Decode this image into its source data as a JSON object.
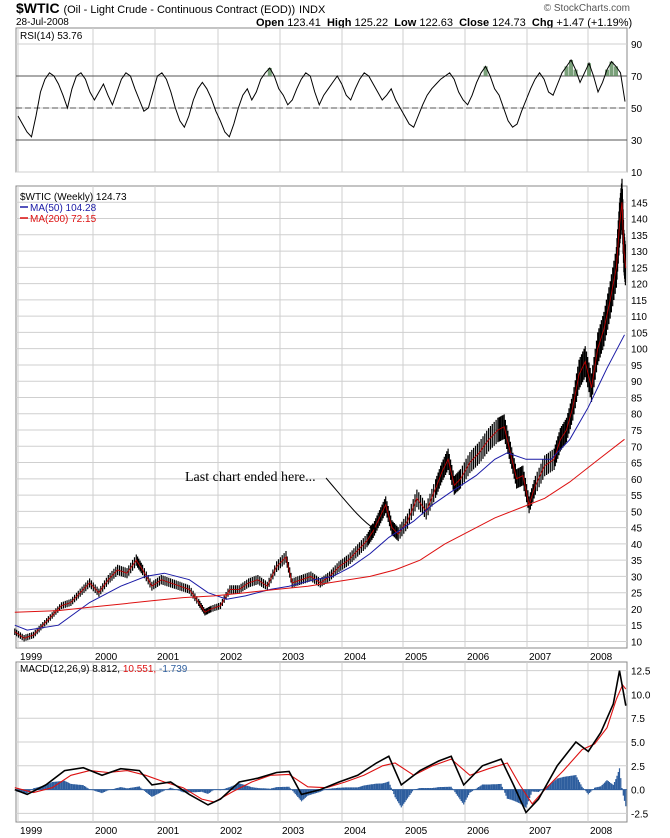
{
  "header": {
    "symbol": "$WTIC",
    "name": "(Oil - Light Crude - Continuous Contract (EOD))",
    "exchange": "INDX",
    "date": "28-Jul-2008",
    "open_label": "Open",
    "open": "123.41",
    "high_label": "High",
    "high": "125.22",
    "low_label": "Low",
    "low": "122.63",
    "close_label": "Close",
    "close": "124.73",
    "chg_label": "Chg",
    "chg": "+1.47 (+1.19%)",
    "credit": "© StockCharts.com"
  },
  "colors": {
    "ma50": "#1a1aa6",
    "ma200": "#dd1111",
    "rsi_fill": "#5a8a5a",
    "hist": "#2e5e9e",
    "grid": "#cfcfcf"
  },
  "chart_data": [
    {
      "type": "line",
      "panel": "RSI",
      "title": "RSI(14) 53.76",
      "ylim": [
        20,
        100
      ],
      "yticks": [
        10,
        30,
        50,
        70,
        90
      ],
      "reference_lines": [
        30,
        50,
        70
      ],
      "series": [
        {
          "values": [
            45,
            40,
            35,
            32,
            45,
            60,
            68,
            72,
            70,
            65,
            58,
            50,
            62,
            70,
            72,
            68,
            60,
            55,
            60,
            65,
            58,
            52,
            60,
            68,
            72,
            70,
            62,
            55,
            48,
            50,
            60,
            70,
            72,
            68,
            60,
            50,
            42,
            38,
            45,
            55,
            62,
            66,
            62,
            56,
            48,
            42,
            35,
            32,
            40,
            50,
            58,
            62,
            55,
            60,
            68,
            72,
            75,
            70,
            62,
            58,
            52,
            55,
            62,
            68,
            72,
            70,
            60,
            52,
            58,
            62,
            66,
            70,
            65,
            58,
            55,
            62,
            68,
            72,
            70,
            65,
            60,
            55,
            58,
            62,
            55,
            50,
            45,
            40,
            38,
            45,
            52,
            58,
            62,
            65,
            68,
            70,
            72,
            68,
            60,
            55,
            52,
            58,
            66,
            72,
            76,
            70,
            62,
            58,
            50,
            42,
            38,
            40,
            48,
            55,
            62,
            68,
            72,
            68,
            60,
            58,
            65,
            72,
            76,
            80,
            74,
            66,
            72,
            78,
            70,
            60,
            66,
            74,
            79,
            76,
            72,
            54
          ]
        }
      ]
    },
    {
      "type": "line",
      "panel": "Price",
      "title": "$WTIC (Weekly) 124.73",
      "x_ticks": [
        "1999",
        "2000",
        "2001",
        "2002",
        "2003",
        "2004",
        "2005",
        "2006",
        "2007",
        "2008"
      ],
      "ylim": [
        8,
        150
      ],
      "yticks": [
        10,
        15,
        20,
        25,
        30,
        35,
        40,
        45,
        50,
        55,
        60,
        65,
        70,
        75,
        80,
        85,
        90,
        95,
        100,
        105,
        110,
        115,
        120,
        125,
        130,
        135,
        140,
        145
      ],
      "annotation": "Last chart ended here...",
      "series": [
        {
          "name": "MA(50) 104.28",
          "color": "#1a1aa6",
          "values": [
            [
              1998.8,
              15
            ],
            [
              1999.0,
              13.5
            ],
            [
              1999.5,
              15
            ],
            [
              2000.0,
              22
            ],
            [
              2000.5,
              27
            ],
            [
              2000.9,
              30
            ],
            [
              2001.2,
              31
            ],
            [
              2001.6,
              29
            ],
            [
              2001.9,
              25
            ],
            [
              2002.2,
              23
            ],
            [
              2002.5,
              24
            ],
            [
              2002.9,
              26
            ],
            [
              2003.2,
              27
            ],
            [
              2003.6,
              29
            ],
            [
              2003.9,
              30
            ],
            [
              2004.2,
              33
            ],
            [
              2004.5,
              37
            ],
            [
              2004.8,
              42
            ],
            [
              2005.2,
              47
            ],
            [
              2005.5,
              52
            ],
            [
              2005.8,
              56
            ],
            [
              2006.2,
              61
            ],
            [
              2006.5,
              66
            ],
            [
              2006.7,
              68
            ],
            [
              2007.0,
              66
            ],
            [
              2007.4,
              66
            ],
            [
              2007.7,
              72
            ],
            [
              2008.0,
              82
            ],
            [
              2008.3,
              94
            ],
            [
              2008.58,
              104.28
            ]
          ]
        },
        {
          "name": "MA(200) 72.15",
          "color": "#dd1111",
          "values": [
            [
              1998.8,
              19
            ],
            [
              1999.5,
              19.5
            ],
            [
              2000.0,
              20.5
            ],
            [
              2000.5,
              21.5
            ],
            [
              2001.0,
              22.5
            ],
            [
              2001.5,
              23.5
            ],
            [
              2002.0,
              24
            ],
            [
              2002.5,
              25
            ],
            [
              2003.0,
              26
            ],
            [
              2003.5,
              27
            ],
            [
              2004.0,
              28.5
            ],
            [
              2004.5,
              30
            ],
            [
              2004.9,
              32
            ],
            [
              2005.3,
              35
            ],
            [
              2005.7,
              40
            ],
            [
              2006.1,
              44
            ],
            [
              2006.5,
              48
            ],
            [
              2006.9,
              51
            ],
            [
              2007.3,
              54
            ],
            [
              2007.7,
              59
            ],
            [
              2008.1,
              65
            ],
            [
              2008.58,
              72.15
            ]
          ]
        },
        {
          "name": "$WTIC",
          "color": "#000000",
          "values": [
            [
              1998.8,
              13
            ],
            [
              1998.95,
              11
            ],
            [
              1999.1,
              12
            ],
            [
              1999.25,
              15
            ],
            [
              1999.4,
              18
            ],
            [
              1999.55,
              21
            ],
            [
              1999.7,
              22
            ],
            [
              1999.85,
              25
            ],
            [
              2000.0,
              28
            ],
            [
              2000.15,
              25
            ],
            [
              2000.3,
              29
            ],
            [
              2000.45,
              32
            ],
            [
              2000.6,
              31
            ],
            [
              2000.75,
              35
            ],
            [
              2000.85,
              32
            ],
            [
              2001.0,
              27
            ],
            [
              2001.15,
              29
            ],
            [
              2001.3,
              28
            ],
            [
              2001.45,
              27
            ],
            [
              2001.6,
              26
            ],
            [
              2001.75,
              22
            ],
            [
              2001.85,
              19
            ],
            [
              2001.95,
              20
            ],
            [
              2002.1,
              21
            ],
            [
              2002.25,
              26
            ],
            [
              2002.4,
              26
            ],
            [
              2002.55,
              28
            ],
            [
              2002.7,
              29
            ],
            [
              2002.85,
              27
            ],
            [
              2003.0,
              33
            ],
            [
              2003.15,
              36
            ],
            [
              2003.25,
              28
            ],
            [
              2003.4,
              29
            ],
            [
              2003.55,
              30
            ],
            [
              2003.7,
              28
            ],
            [
              2003.85,
              30
            ],
            [
              2004.0,
              33
            ],
            [
              2004.15,
              35
            ],
            [
              2004.3,
              38
            ],
            [
              2004.45,
              41
            ],
            [
              2004.55,
              44
            ],
            [
              2004.65,
              48
            ],
            [
              2004.75,
              52
            ],
            [
              2004.85,
              45
            ],
            [
              2004.95,
              43
            ],
            [
              2005.1,
              47
            ],
            [
              2005.25,
              54
            ],
            [
              2005.4,
              50
            ],
            [
              2005.55,
              57
            ],
            [
              2005.65,
              62
            ],
            [
              2005.75,
              66
            ],
            [
              2005.85,
              58
            ],
            [
              2005.95,
              60
            ],
            [
              2006.1,
              65
            ],
            [
              2006.25,
              68
            ],
            [
              2006.4,
              72
            ],
            [
              2006.55,
              75
            ],
            [
              2006.65,
              76
            ],
            [
              2006.75,
              68
            ],
            [
              2006.85,
              60
            ],
            [
              2006.95,
              61
            ],
            [
              2007.05,
              52
            ],
            [
              2007.15,
              58
            ],
            [
              2007.3,
              64
            ],
            [
              2007.45,
              66
            ],
            [
              2007.55,
              72
            ],
            [
              2007.65,
              75
            ],
            [
              2007.75,
              82
            ],
            [
              2007.85,
              92
            ],
            [
              2007.95,
              96
            ],
            [
              2008.05,
              88
            ],
            [
              2008.15,
              100
            ],
            [
              2008.25,
              106
            ],
            [
              2008.35,
              115
            ],
            [
              2008.45,
              125
            ],
            [
              2008.5,
              138
            ],
            [
              2008.54,
              145
            ],
            [
              2008.57,
              130
            ],
            [
              2008.6,
              124.73
            ]
          ]
        }
      ]
    },
    {
      "type": "line",
      "panel": "MACD",
      "title": "MACD(12,26,9) 8.812, 10.551, -1.739",
      "x_ticks": [
        "1999",
        "2000",
        "2001",
        "2002",
        "2003",
        "2004",
        "2005",
        "2006",
        "2007",
        "2008"
      ],
      "ylim": [
        -3.4,
        13.4
      ],
      "yticks": [
        -2.5,
        0.0,
        2.5,
        5.0,
        7.5,
        10.0,
        12.5
      ],
      "series": [
        {
          "name": "MACD 8.812",
          "color": "#000000",
          "values": [
            [
              1998.8,
              0
            ],
            [
              1999.0,
              -0.5
            ],
            [
              1999.3,
              0.5
            ],
            [
              1999.6,
              2.0
            ],
            [
              1999.9,
              2.3
            ],
            [
              2000.2,
              1.5
            ],
            [
              2000.5,
              2.2
            ],
            [
              2000.8,
              2.0
            ],
            [
              2001.0,
              0.5
            ],
            [
              2001.3,
              0.8
            ],
            [
              2001.6,
              -0.5
            ],
            [
              2001.9,
              -1.6
            ],
            [
              2002.1,
              -1.0
            ],
            [
              2002.4,
              0.8
            ],
            [
              2002.7,
              1.2
            ],
            [
              2003.0,
              1.8
            ],
            [
              2003.2,
              1.9
            ],
            [
              2003.4,
              -0.5
            ],
            [
              2003.7,
              0
            ],
            [
              2004.0,
              0.8
            ],
            [
              2004.3,
              1.5
            ],
            [
              2004.6,
              2.8
            ],
            [
              2004.8,
              3.5
            ],
            [
              2005.0,
              0.5
            ],
            [
              2005.3,
              2.0
            ],
            [
              2005.6,
              3.0
            ],
            [
              2005.8,
              3.5
            ],
            [
              2006.0,
              0.5
            ],
            [
              2006.3,
              2.5
            ],
            [
              2006.6,
              3.2
            ],
            [
              2006.8,
              0.5
            ],
            [
              2007.0,
              -2.4
            ],
            [
              2007.2,
              -1.0
            ],
            [
              2007.5,
              2.5
            ],
            [
              2007.8,
              5.0
            ],
            [
              2008.0,
              4.0
            ],
            [
              2008.2,
              6.0
            ],
            [
              2008.4,
              9.0
            ],
            [
              2008.5,
              12.5
            ],
            [
              2008.6,
              8.812
            ]
          ]
        },
        {
          "name": "Signal 10.551",
          "color": "#dd1111",
          "values": [
            [
              1998.8,
              0.2
            ],
            [
              1999.1,
              -0.3
            ],
            [
              1999.4,
              0.2
            ],
            [
              1999.7,
              1.5
            ],
            [
              2000.0,
              2.0
            ],
            [
              2000.3,
              1.8
            ],
            [
              2000.6,
              2.0
            ],
            [
              2000.9,
              1.5
            ],
            [
              2001.2,
              0.8
            ],
            [
              2001.5,
              0.2
            ],
            [
              2001.8,
              -1.0
            ],
            [
              2002.0,
              -1.3
            ],
            [
              2002.3,
              -0.2
            ],
            [
              2002.6,
              0.8
            ],
            [
              2002.9,
              1.5
            ],
            [
              2003.2,
              1.6
            ],
            [
              2003.5,
              0.3
            ],
            [
              2003.8,
              0.2
            ],
            [
              2004.1,
              0.8
            ],
            [
              2004.4,
              1.5
            ],
            [
              2004.7,
              2.5
            ],
            [
              2004.9,
              2.8
            ],
            [
              2005.2,
              1.5
            ],
            [
              2005.5,
              2.5
            ],
            [
              2005.8,
              3.2
            ],
            [
              2006.1,
              1.5
            ],
            [
              2006.4,
              2.2
            ],
            [
              2006.7,
              2.8
            ],
            [
              2006.9,
              0.5
            ],
            [
              2007.1,
              -1.5
            ],
            [
              2007.3,
              0
            ],
            [
              2007.6,
              2.0
            ],
            [
              2007.9,
              4.2
            ],
            [
              2008.1,
              4.8
            ],
            [
              2008.3,
              6.5
            ],
            [
              2008.45,
              9.5
            ],
            [
              2008.55,
              11.0
            ],
            [
              2008.6,
              10.551
            ]
          ]
        },
        {
          "name": "Histogram -1.739",
          "color": "#2e5e9e",
          "values": []
        }
      ]
    }
  ]
}
